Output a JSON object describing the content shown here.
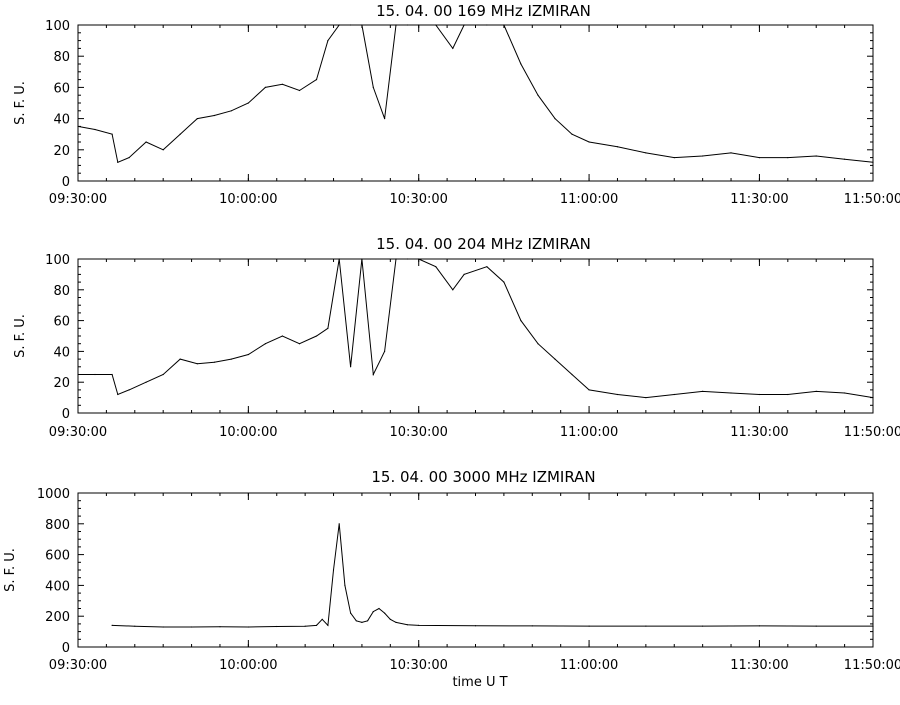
{
  "chart_data": [
    {
      "type": "line",
      "title": "15.  04.  00   169 MHz   IZMIRAN",
      "xlabel": "",
      "ylabel": "S. F. U.",
      "ylim": [
        0,
        100
      ],
      "yticks": [
        "0",
        "20",
        "40",
        "60",
        "80",
        "100"
      ],
      "xticks": [
        "09:30:00",
        "10:00:00",
        "10:30:00",
        "11:00:00",
        "11:30:00",
        "11:50:00"
      ],
      "xrange": [
        "09:30:00",
        "11:50:00"
      ],
      "series": [
        {
          "x": [
            "09:30:00",
            "09:33:00",
            "09:36:00",
            "09:37:00",
            "09:39:00",
            "09:42:00",
            "09:45:00",
            "09:48:00",
            "09:51:00",
            "09:54:00",
            "09:57:00",
            "10:00:00",
            "10:03:00",
            "10:06:00",
            "10:09:00",
            "10:12:00",
            "10:14:00",
            "10:16:00",
            "10:18:00",
            "10:20:00",
            "10:22:00",
            "10:24:00",
            "10:26:00",
            "10:28:00",
            "10:30:00",
            "10:33:00",
            "10:36:00",
            "10:38:00",
            "10:42:00",
            "10:45:00",
            "10:48:00",
            "10:51:00",
            "10:54:00",
            "10:57:00",
            "11:00:00",
            "11:05:00",
            "11:10:00",
            "11:15:00",
            "11:20:00",
            "11:25:00",
            "11:30:00",
            "11:35:00",
            "11:40:00",
            "11:45:00",
            "11:50:00"
          ],
          "values": [
            35,
            33,
            30,
            12,
            15,
            25,
            20,
            30,
            40,
            42,
            45,
            50,
            60,
            62,
            58,
            65,
            90,
            100,
            100,
            100,
            60,
            40,
            100,
            100,
            100,
            100,
            85,
            100,
            100,
            100,
            75,
            55,
            40,
            30,
            25,
            22,
            18,
            15,
            16,
            18,
            15,
            15,
            16,
            14,
            12
          ]
        }
      ]
    },
    {
      "type": "line",
      "title": "15.  04.  00   204 MHz   IZMIRAN",
      "xlabel": "",
      "ylabel": "S. F. U.",
      "ylim": [
        0,
        100
      ],
      "yticks": [
        "0",
        "20",
        "40",
        "60",
        "80",
        "100"
      ],
      "xticks": [
        "09:30:00",
        "10:00:00",
        "10:30:00",
        "11:00:00",
        "11:30:00",
        "11:50:00"
      ],
      "xrange": [
        "09:30:00",
        "11:50:00"
      ],
      "series": [
        {
          "x": [
            "09:30:00",
            "09:33:00",
            "09:36:00",
            "09:37:00",
            "09:39:00",
            "09:42:00",
            "09:45:00",
            "09:48:00",
            "09:51:00",
            "09:54:00",
            "09:57:00",
            "10:00:00",
            "10:03:00",
            "10:06:00",
            "10:09:00",
            "10:12:00",
            "10:14:00",
            "10:16:00",
            "10:18:00",
            "10:20:00",
            "10:22:00",
            "10:24:00",
            "10:26:00",
            "10:28:00",
            "10:30:00",
            "10:33:00",
            "10:36:00",
            "10:38:00",
            "10:42:00",
            "10:45:00",
            "10:48:00",
            "10:51:00",
            "10:54:00",
            "10:57:00",
            "11:00:00",
            "11:05:00",
            "11:10:00",
            "11:15:00",
            "11:20:00",
            "11:25:00",
            "11:30:00",
            "11:35:00",
            "11:40:00",
            "11:45:00",
            "11:50:00"
          ],
          "values": [
            25,
            25,
            25,
            12,
            15,
            20,
            25,
            35,
            32,
            33,
            35,
            38,
            45,
            50,
            45,
            50,
            55,
            100,
            30,
            100,
            25,
            40,
            100,
            100,
            100,
            95,
            80,
            90,
            95,
            85,
            60,
            45,
            35,
            25,
            15,
            12,
            10,
            12,
            14,
            13,
            12,
            12,
            14,
            13,
            10
          ]
        }
      ]
    },
    {
      "type": "line",
      "title": "15.  04.  00   3000 MHz   IZMIRAN",
      "xlabel": "time  U T",
      "ylabel": "S. F. U.",
      "ylim": [
        0,
        1000
      ],
      "yticks": [
        "0",
        "200",
        "400",
        "600",
        "800",
        "1000"
      ],
      "xticks": [
        "09:30:00",
        "10:00:00",
        "10:30:00",
        "11:00:00",
        "11:30:00",
        "11:50:00"
      ],
      "xrange": [
        "09:30:00",
        "11:50:00"
      ],
      "series": [
        {
          "x": [
            "09:36:00",
            "09:40:00",
            "09:45:00",
            "09:50:00",
            "09:55:00",
            "10:00:00",
            "10:05:00",
            "10:10:00",
            "10:12:00",
            "10:13:00",
            "10:14:00",
            "10:15:00",
            "10:16:00",
            "10:17:00",
            "10:18:00",
            "10:19:00",
            "10:20:00",
            "10:21:00",
            "10:22:00",
            "10:23:00",
            "10:24:00",
            "10:25:00",
            "10:26:00",
            "10:28:00",
            "10:30:00",
            "10:40:00",
            "10:50:00",
            "11:00:00",
            "11:10:00",
            "11:20:00",
            "11:30:00",
            "11:40:00",
            "11:50:00"
          ],
          "values": [
            140,
            135,
            130,
            130,
            132,
            130,
            133,
            135,
            140,
            180,
            140,
            500,
            800,
            400,
            220,
            170,
            160,
            170,
            230,
            250,
            220,
            180,
            160,
            145,
            140,
            138,
            137,
            136,
            136,
            136,
            137,
            136,
            136
          ]
        }
      ]
    }
  ]
}
